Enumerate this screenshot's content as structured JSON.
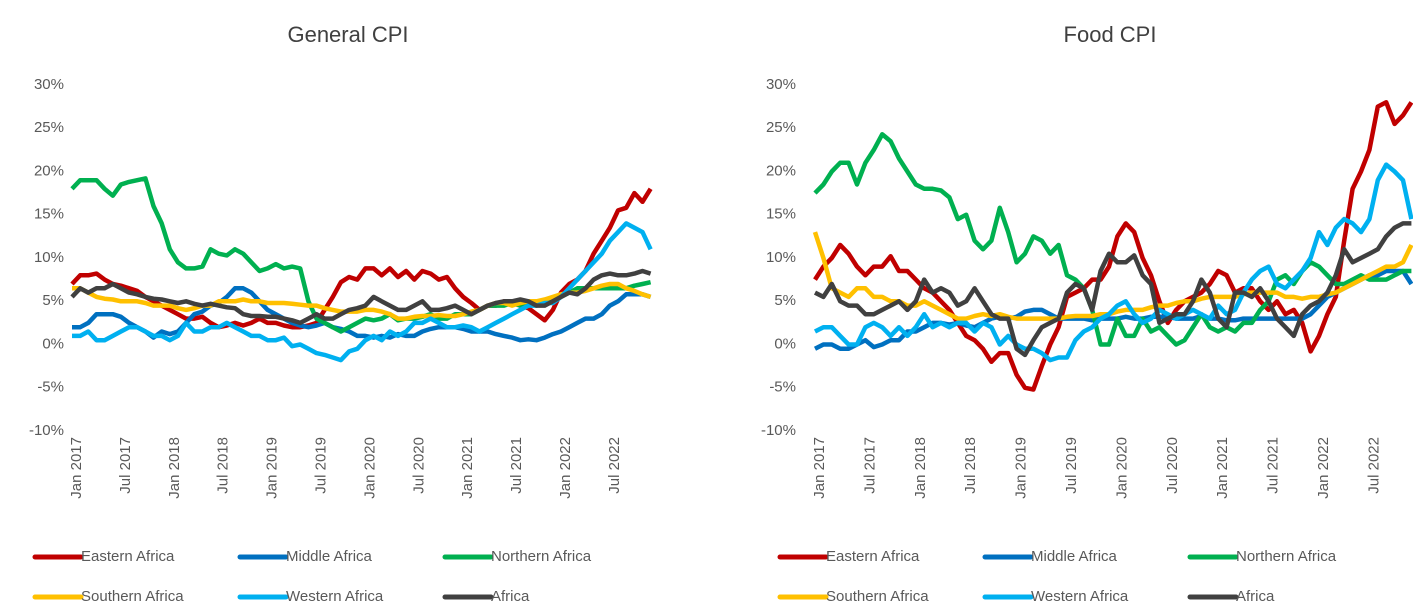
{
  "chart_data": [
    {
      "type": "line",
      "title": "General CPI",
      "categories": [
        "Jan 2017",
        null,
        null,
        null,
        null,
        null,
        "Jul 2017",
        null,
        null,
        null,
        null,
        null,
        "Jan 2018",
        null,
        null,
        null,
        null,
        null,
        "Jul 2018",
        null,
        null,
        null,
        null,
        null,
        "Jan 2019",
        null,
        null,
        null,
        null,
        null,
        "Jul 2019",
        null,
        null,
        null,
        null,
        null,
        "Jan 2020",
        null,
        null,
        null,
        null,
        null,
        "Jul 2020",
        null,
        null,
        null,
        null,
        null,
        "Jan 2021",
        null,
        null,
        null,
        null,
        null,
        "Jul 2021",
        null,
        null,
        null,
        null,
        null,
        "Jan 2022",
        null,
        null,
        null,
        null,
        null,
        "Jul 2022",
        null,
        null,
        null,
        null,
        null
      ],
      "ylim": [
        -10,
        30
      ],
      "yticks": [
        {
          "value": -10,
          "label": "-10%"
        },
        {
          "value": -5,
          "label": "-5%"
        },
        {
          "value": 0,
          "label": "0%"
        },
        {
          "value": 5,
          "label": "5%"
        },
        {
          "value": 10,
          "label": "10%"
        },
        {
          "value": 15,
          "label": "15%"
        },
        {
          "value": 20,
          "label": "20%"
        },
        {
          "value": 25,
          "label": "25%"
        },
        {
          "value": 30,
          "label": "30%"
        }
      ],
      "grid": false,
      "legend": "bottom",
      "series": [
        {
          "name": "Eastern Africa",
          "color": "#c00000",
          "values": [
            7,
            8,
            8,
            8.2,
            7.5,
            7,
            6.8,
            6.5,
            6.2,
            5.5,
            5,
            4.5,
            4,
            3.5,
            3,
            3,
            3.2,
            2.5,
            2,
            2.2,
            2.5,
            2.2,
            2.5,
            3,
            2.5,
            2.5,
            2.2,
            2,
            2,
            2.2,
            2.5,
            4,
            5.5,
            7.2,
            7.8,
            7.5,
            8.8,
            8.8,
            8,
            8.8,
            7.8,
            8.5,
            7.5,
            8.5,
            8.2,
            7.5,
            7.8,
            6.5,
            5.5,
            4.8,
            4,
            4.5,
            4.5,
            5,
            4.8,
            4.5,
            4.2,
            3.5,
            2.8,
            4,
            6,
            7,
            7.5,
            8.5,
            10.5,
            12,
            13.5,
            15.5,
            15.8,
            17.5,
            16.5,
            18
          ]
        },
        {
          "name": "Middle Africa",
          "color": "#0070c0",
          "values": [
            2,
            2,
            2.5,
            3.5,
            3.5,
            3.5,
            3.2,
            2.5,
            2,
            1.5,
            0.8,
            1.5,
            1.2,
            1.5,
            2.5,
            3.5,
            3.8,
            4.5,
            4.8,
            5.5,
            6.5,
            6.5,
            6,
            5,
            4,
            3.5,
            3,
            2.5,
            2.2,
            2,
            2.2,
            2.5,
            2,
            1.8,
            1.5,
            1,
            1,
            0.8,
            1,
            0.8,
            1.2,
            1,
            1,
            1.5,
            1.8,
            2,
            2,
            2,
            1.8,
            1.5,
            1.5,
            1.5,
            1.2,
            1,
            0.8,
            0.5,
            0.6,
            0.5,
            0.8,
            1.2,
            1.5,
            2,
            2.5,
            3,
            3,
            3.5,
            4.5,
            5,
            5.8,
            5.8,
            5.8,
            5.5
          ]
        },
        {
          "name": "Northern Africa",
          "color": "#00b050",
          "values": [
            18,
            19,
            19,
            19,
            18,
            17.2,
            18.5,
            18.8,
            19,
            19.2,
            16,
            14,
            11,
            9.5,
            8.8,
            8.8,
            9,
            11,
            10.5,
            10.3,
            11,
            10.5,
            9.5,
            8.5,
            8.8,
            9.3,
            8.8,
            9,
            8.8,
            5,
            3,
            2.5,
            2,
            1.5,
            2,
            2.5,
            3,
            2.8,
            3,
            3.5,
            2.8,
            3,
            3,
            3.2,
            3.5,
            3,
            3,
            3.5,
            3.5,
            3.5,
            4,
            4.5,
            4.5,
            4.5,
            4.8,
            4.5,
            4.8,
            5,
            5,
            5,
            5.5,
            6,
            6.5,
            6.5,
            6.5,
            6.5,
            6.5,
            6.5,
            6.5,
            6.8,
            7,
            7.2
          ]
        },
        {
          "name": "Southern Africa",
          "color": "#ffc000",
          "values": [
            6.5,
            6.5,
            6,
            5.5,
            5.3,
            5.2,
            5,
            5,
            5,
            4.8,
            4.5,
            4.5,
            4.5,
            4.2,
            4,
            4.2,
            4.5,
            4.5,
            5,
            5,
            5,
            5.2,
            5,
            5,
            4.8,
            4.8,
            4.8,
            4.7,
            4.6,
            4.5,
            4.5,
            4.2,
            4,
            3.8,
            3.8,
            3.8,
            4,
            4,
            3.8,
            3.5,
            3,
            3,
            3.2,
            3.3,
            3.3,
            3.4,
            3.3,
            3.3,
            3.5,
            3.8,
            4,
            4.5,
            4.8,
            4.8,
            4.5,
            4.8,
            5,
            5,
            5.2,
            5.5,
            5.8,
            6,
            6,
            6.2,
            6.5,
            6.8,
            7,
            7,
            6.5,
            6.2,
            5.8,
            5.5
          ]
        },
        {
          "name": "Western Africa",
          "color": "#00b0f0",
          "values": [
            1,
            1,
            1.5,
            0.5,
            0.5,
            1,
            1.5,
            2,
            2,
            1.5,
            1,
            1,
            0.5,
            1,
            2.5,
            1.5,
            1.5,
            2,
            2,
            2.5,
            2,
            1.5,
            1,
            1,
            0.5,
            0.5,
            0.8,
            -0.2,
            0,
            -0.5,
            -1,
            -1.2,
            -1.5,
            -1.8,
            -0.8,
            -0.5,
            0.5,
            1,
            0.5,
            1.5,
            1,
            1.5,
            2.5,
            2.5,
            3,
            2.5,
            2,
            2,
            2.2,
            2,
            1.5,
            2,
            2.5,
            3,
            3.5,
            4,
            4.5,
            4.5,
            4.8,
            4.8,
            5.5,
            6.5,
            7.5,
            8.5,
            9.5,
            10.5,
            12,
            13,
            14,
            13.5,
            13,
            11
          ]
        },
        {
          "name": "Africa",
          "color": "#404040",
          "values": [
            5.5,
            6.5,
            6,
            6.5,
            6.5,
            7,
            6.5,
            6,
            5.8,
            5.5,
            5.3,
            5.2,
            5,
            4.8,
            5,
            4.7,
            4.5,
            4.7,
            4.5,
            4.3,
            4.2,
            3.5,
            3.3,
            3.3,
            3.2,
            3.2,
            3,
            2.8,
            2.5,
            3,
            3.5,
            3,
            3,
            3.5,
            4,
            4.2,
            4.5,
            5.5,
            5,
            4.5,
            4,
            4,
            4.5,
            5,
            4,
            4,
            4.2,
            4.5,
            4,
            3.5,
            4,
            4.5,
            4.8,
            5,
            5,
            5.2,
            5,
            4.5,
            4.5,
            5,
            5.5,
            6,
            5.8,
            6.5,
            7.5,
            8,
            8.2,
            8,
            8,
            8.2,
            8.5,
            8.2
          ]
        }
      ]
    },
    {
      "type": "line",
      "title": "Food CPI",
      "categories": [
        "Jan 2017",
        null,
        null,
        null,
        null,
        null,
        "Jul 2017",
        null,
        null,
        null,
        null,
        null,
        "Jan 2018",
        null,
        null,
        null,
        null,
        null,
        "Jul 2018",
        null,
        null,
        null,
        null,
        null,
        "Jan 2019",
        null,
        null,
        null,
        null,
        null,
        "Jul 2019",
        null,
        null,
        null,
        null,
        null,
        "Jan 2020",
        null,
        null,
        null,
        null,
        null,
        "Jul 2020",
        null,
        null,
        null,
        null,
        null,
        "Jan 2021",
        null,
        null,
        null,
        null,
        null,
        "Jul 2021",
        null,
        null,
        null,
        null,
        null,
        "Jan 2022",
        null,
        null,
        null,
        null,
        null,
        "Jul 2022",
        null,
        null,
        null,
        null,
        null
      ],
      "ylim": [
        -10,
        30
      ],
      "yticks": [
        {
          "value": -10,
          "label": "-10%"
        },
        {
          "value": -5,
          "label": "-5%"
        },
        {
          "value": 0,
          "label": "0%"
        },
        {
          "value": 5,
          "label": "5%"
        },
        {
          "value": 10,
          "label": "10%"
        },
        {
          "value": 15,
          "label": "15%"
        },
        {
          "value": 20,
          "label": "20%"
        },
        {
          "value": 25,
          "label": "25%"
        },
        {
          "value": 30,
          "label": "30%"
        }
      ],
      "grid": false,
      "legend": "bottom",
      "series": [
        {
          "name": "Eastern Africa",
          "color": "#c00000",
          "values": [
            7.5,
            9,
            10,
            11.5,
            10.5,
            9,
            8,
            9,
            9,
            10.2,
            8.5,
            8.5,
            7.5,
            6.5,
            6,
            5,
            4,
            2.5,
            1,
            0.5,
            -0.5,
            -2,
            -1,
            -1,
            -3.5,
            -5,
            -5.2,
            -2.5,
            0,
            2,
            5.5,
            6,
            6.5,
            7.5,
            7.5,
            9,
            12.5,
            14,
            13,
            10,
            8,
            5,
            2.5,
            4,
            5,
            5.5,
            6,
            7,
            8.5,
            8,
            6,
            6.5,
            6.5,
            5,
            4,
            5,
            3.5,
            4,
            2.5,
            -0.8,
            1,
            3.5,
            5.5,
            12,
            18,
            20,
            22.5,
            27.5,
            28,
            25.5,
            26.5,
            28
          ]
        },
        {
          "name": "Middle Africa",
          "color": "#0070c0",
          "values": [
            -0.5,
            0,
            0,
            -0.5,
            -0.5,
            0,
            0.5,
            -0.3,
            0,
            0.5,
            0.5,
            1.5,
            1.5,
            2,
            2.5,
            2.5,
            2.3,
            2.5,
            2.2,
            2,
            2.5,
            3,
            3.2,
            3,
            3.2,
            3.8,
            4,
            4,
            3.5,
            3,
            3,
            3,
            3,
            2.8,
            3,
            3,
            3,
            3.2,
            3,
            3,
            3.2,
            3.2,
            3.2,
            3,
            3,
            3,
            3.3,
            3,
            3,
            2.8,
            2.8,
            3,
            3,
            3,
            3,
            3,
            3,
            3,
            3,
            3.5,
            4.5,
            5.5,
            6,
            6.5,
            7,
            7.5,
            8,
            8,
            8.5,
            8.5,
            8.5,
            7
          ]
        },
        {
          "name": "Northern Africa",
          "color": "#00b050",
          "values": [
            17.5,
            18.5,
            20,
            21,
            21,
            18.5,
            21,
            22.5,
            24.3,
            23.5,
            21.5,
            20,
            18.5,
            18,
            18,
            17.8,
            17,
            14.5,
            15,
            12,
            11,
            12,
            15.8,
            13,
            9.5,
            10.5,
            12.5,
            12,
            10.5,
            11.5,
            8,
            7.5,
            6.5,
            4,
            0,
            0,
            3,
            1,
            1,
            3,
            1.5,
            2,
            1,
            0,
            0.5,
            2,
            3.5,
            2,
            1.5,
            2,
            1.5,
            2.5,
            2.5,
            4,
            5,
            7.5,
            8,
            7,
            8.5,
            9.5,
            9,
            8,
            7,
            7,
            7.5,
            8,
            7.5,
            7.5,
            7.5,
            8,
            8.5,
            8.5
          ]
        },
        {
          "name": "Southern Africa",
          "color": "#ffc000",
          "values": [
            13,
            10,
            6.5,
            6,
            5.5,
            6.5,
            6.5,
            5.5,
            5.5,
            5,
            5,
            4.5,
            4.5,
            5,
            4.5,
            4,
            3.5,
            3,
            3,
            3.3,
            3.5,
            3.3,
            3.5,
            3.2,
            3,
            3,
            3,
            3,
            3,
            3,
            3.2,
            3.3,
            3.3,
            3.3,
            3.5,
            3.5,
            3.8,
            4,
            4,
            4,
            4.3,
            4.5,
            4.5,
            4.8,
            5,
            5,
            5.3,
            5.5,
            5.5,
            5.5,
            5.5,
            5.8,
            6,
            6,
            6,
            6,
            5.5,
            5.5,
            5.3,
            5.5,
            5.5,
            5.8,
            6,
            6.5,
            7,
            7.5,
            8,
            8.5,
            9,
            9,
            9.5,
            11.5
          ]
        },
        {
          "name": "Western Africa",
          "color": "#00b0f0",
          "values": [
            1.5,
            2,
            2,
            1,
            0,
            0,
            2,
            2.5,
            2,
            1,
            2,
            1,
            2,
            3.5,
            2,
            2.5,
            2,
            2.5,
            2.5,
            1.5,
            2.5,
            2,
            0,
            1,
            0,
            -0.5,
            -0.5,
            -1,
            -1.8,
            -1.5,
            -1.5,
            0.5,
            1.5,
            2,
            3,
            3.5,
            4.5,
            5,
            3.5,
            2.5,
            3,
            4,
            3.5,
            3,
            3.5,
            4,
            3.5,
            3,
            4.5,
            3.5,
            4,
            6,
            7.5,
            8.5,
            9,
            7,
            6.5,
            7.5,
            8.5,
            10,
            13,
            11.5,
            13.5,
            14.5,
            14,
            13,
            14.5,
            19,
            20.8,
            20,
            19,
            14.5
          ]
        },
        {
          "name": "Africa",
          "color": "#404040",
          "values": [
            6,
            5.5,
            7,
            5,
            4.5,
            4.5,
            3.5,
            3.5,
            4,
            4.5,
            5,
            4,
            5,
            7.5,
            6,
            6.5,
            6,
            4.5,
            5,
            6.5,
            5,
            3.5,
            3,
            3,
            -0.5,
            -1.2,
            0.5,
            2,
            2.5,
            3,
            6,
            7,
            6.5,
            4,
            8.5,
            10.5,
            9.5,
            9.5,
            10.3,
            8,
            7,
            2.5,
            3,
            3.5,
            3.5,
            5,
            7.5,
            6,
            3,
            2,
            6,
            6,
            5.5,
            6.5,
            5,
            3,
            2,
            1,
            3.5,
            4.5,
            5,
            6,
            8,
            11,
            9.5,
            10,
            10.5,
            11,
            12.5,
            13.5,
            14,
            14
          ]
        }
      ]
    }
  ]
}
